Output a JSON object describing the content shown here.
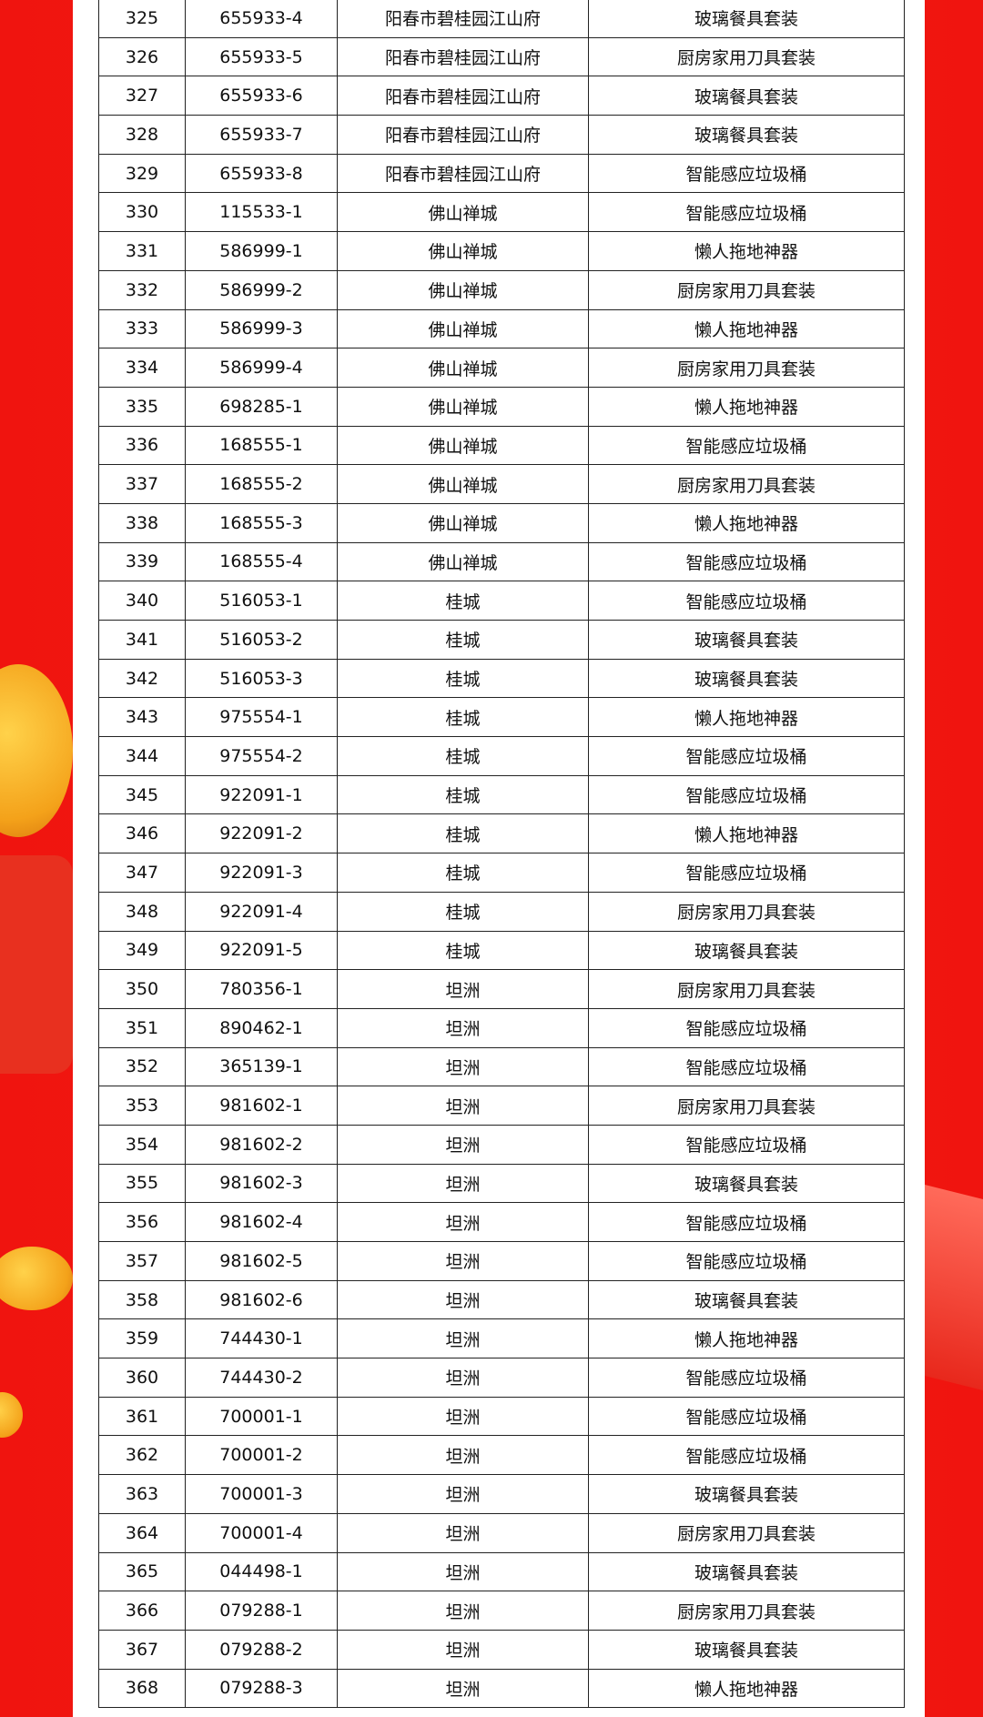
{
  "colors": {
    "background": "#f0140f",
    "panel": "#ffffff",
    "border": "#222222"
  },
  "table": {
    "rows": [
      [
        "325",
        "655933-4",
        "阳春市碧桂园江山府",
        "玻璃餐具套装"
      ],
      [
        "326",
        "655933-5",
        "阳春市碧桂园江山府",
        "厨房家用刀具套装"
      ],
      [
        "327",
        "655933-6",
        "阳春市碧桂园江山府",
        "玻璃餐具套装"
      ],
      [
        "328",
        "655933-7",
        "阳春市碧桂园江山府",
        "玻璃餐具套装"
      ],
      [
        "329",
        "655933-8",
        "阳春市碧桂园江山府",
        "智能感应垃圾桶"
      ],
      [
        "330",
        "115533-1",
        "佛山禅城",
        "智能感应垃圾桶"
      ],
      [
        "331",
        "586999-1",
        "佛山禅城",
        "懒人拖地神器"
      ],
      [
        "332",
        "586999-2",
        "佛山禅城",
        "厨房家用刀具套装"
      ],
      [
        "333",
        "586999-3",
        "佛山禅城",
        "懒人拖地神器"
      ],
      [
        "334",
        "586999-4",
        "佛山禅城",
        "厨房家用刀具套装"
      ],
      [
        "335",
        "698285-1",
        "佛山禅城",
        "懒人拖地神器"
      ],
      [
        "336",
        "168555-1",
        "佛山禅城",
        "智能感应垃圾桶"
      ],
      [
        "337",
        "168555-2",
        "佛山禅城",
        "厨房家用刀具套装"
      ],
      [
        "338",
        "168555-3",
        "佛山禅城",
        "懒人拖地神器"
      ],
      [
        "339",
        "168555-4",
        "佛山禅城",
        "智能感应垃圾桶"
      ],
      [
        "340",
        "516053-1",
        "桂城",
        "智能感应垃圾桶"
      ],
      [
        "341",
        "516053-2",
        "桂城",
        "玻璃餐具套装"
      ],
      [
        "342",
        "516053-3",
        "桂城",
        "玻璃餐具套装"
      ],
      [
        "343",
        "975554-1",
        "桂城",
        "懒人拖地神器"
      ],
      [
        "344",
        "975554-2",
        "桂城",
        "智能感应垃圾桶"
      ],
      [
        "345",
        "922091-1",
        "桂城",
        "智能感应垃圾桶"
      ],
      [
        "346",
        "922091-2",
        "桂城",
        "懒人拖地神器"
      ],
      [
        "347",
        "922091-3",
        "桂城",
        "智能感应垃圾桶"
      ],
      [
        "348",
        "922091-4",
        "桂城",
        "厨房家用刀具套装"
      ],
      [
        "349",
        "922091-5",
        "桂城",
        "玻璃餐具套装"
      ],
      [
        "350",
        "780356-1",
        "坦洲",
        "厨房家用刀具套装"
      ],
      [
        "351",
        "890462-1",
        "坦洲",
        "智能感应垃圾桶"
      ],
      [
        "352",
        "365139-1",
        "坦洲",
        "智能感应垃圾桶"
      ],
      [
        "353",
        "981602-1",
        "坦洲",
        "厨房家用刀具套装"
      ],
      [
        "354",
        "981602-2",
        "坦洲",
        "智能感应垃圾桶"
      ],
      [
        "355",
        "981602-3",
        "坦洲",
        "玻璃餐具套装"
      ],
      [
        "356",
        "981602-4",
        "坦洲",
        "智能感应垃圾桶"
      ],
      [
        "357",
        "981602-5",
        "坦洲",
        "智能感应垃圾桶"
      ],
      [
        "358",
        "981602-6",
        "坦洲",
        "玻璃餐具套装"
      ],
      [
        "359",
        "744430-1",
        "坦洲",
        "懒人拖地神器"
      ],
      [
        "360",
        "744430-2",
        "坦洲",
        "智能感应垃圾桶"
      ],
      [
        "361",
        "700001-1",
        "坦洲",
        "智能感应垃圾桶"
      ],
      [
        "362",
        "700001-2",
        "坦洲",
        "智能感应垃圾桶"
      ],
      [
        "363",
        "700001-3",
        "坦洲",
        "玻璃餐具套装"
      ],
      [
        "364",
        "700001-4",
        "坦洲",
        "厨房家用刀具套装"
      ],
      [
        "365",
        "044498-1",
        "坦洲",
        "玻璃餐具套装"
      ],
      [
        "366",
        "079288-1",
        "坦洲",
        "厨房家用刀具套装"
      ],
      [
        "367",
        "079288-2",
        "坦洲",
        "玻璃餐具套装"
      ],
      [
        "368",
        "079288-3",
        "坦洲",
        "懒人拖地神器"
      ]
    ]
  }
}
